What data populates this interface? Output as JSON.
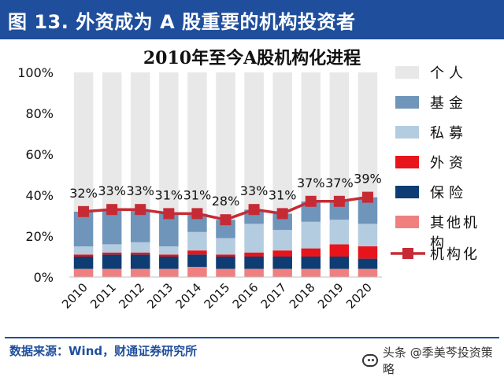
{
  "banner": {
    "title": "图 13. 外资成为 A 股重要的机构投资者"
  },
  "source": "数据来源：Wind，财通证券研究所",
  "watermark": {
    "text": "头条 @季美芩投资策略",
    "icon": "chat-bubble-icon"
  },
  "chart_data": {
    "type": "bar",
    "stacked": true,
    "title": "2010年至今A股机构化进程",
    "categories": [
      "2010",
      "2011",
      "2012",
      "2013",
      "2014",
      "2015",
      "2016",
      "2017",
      "2018",
      "2019",
      "2020"
    ],
    "ylim": [
      0,
      100
    ],
    "yticks": [
      "0%",
      "20%",
      "40%",
      "60%",
      "80%",
      "100%"
    ],
    "grid": false,
    "legend_position": "right",
    "series": [
      {
        "name": "其他机构",
        "color": "#f08080",
        "values": [
          4,
          4,
          4,
          4,
          5,
          4,
          4,
          4,
          4,
          4,
          4
        ]
      },
      {
        "name": "保险",
        "color": "#0d3d73",
        "values": [
          6,
          7,
          7,
          6,
          6,
          6,
          6,
          6,
          6,
          6,
          5
        ]
      },
      {
        "name": "外资",
        "color": "#e8141c",
        "values": [
          1,
          1,
          1,
          1,
          2,
          1,
          2,
          3,
          4,
          6,
          6
        ]
      },
      {
        "name": "私募",
        "color": "#b4cce0",
        "values": [
          4,
          4,
          5,
          4,
          9,
          8,
          14,
          10,
          13,
          12,
          11
        ]
      },
      {
        "name": "基金",
        "color": "#6f95ba",
        "values": [
          17,
          17,
          16,
          16,
          9,
          9,
          7,
          8,
          10,
          9,
          13
        ]
      },
      {
        "name": "个人",
        "color": "#e8e8e8",
        "values": [
          68,
          67,
          67,
          69,
          69,
          72,
          67,
          69,
          63,
          63,
          61
        ]
      }
    ],
    "line": {
      "name": "机构化",
      "color": "#c62b35",
      "values": [
        32,
        33,
        33,
        31,
        31,
        28,
        33,
        31,
        37,
        37,
        39
      ],
      "labels": [
        "32%",
        "33%",
        "33%",
        "31%",
        "31%",
        "28%",
        "33%",
        "31%",
        "37%",
        "37%",
        "39%"
      ]
    }
  }
}
